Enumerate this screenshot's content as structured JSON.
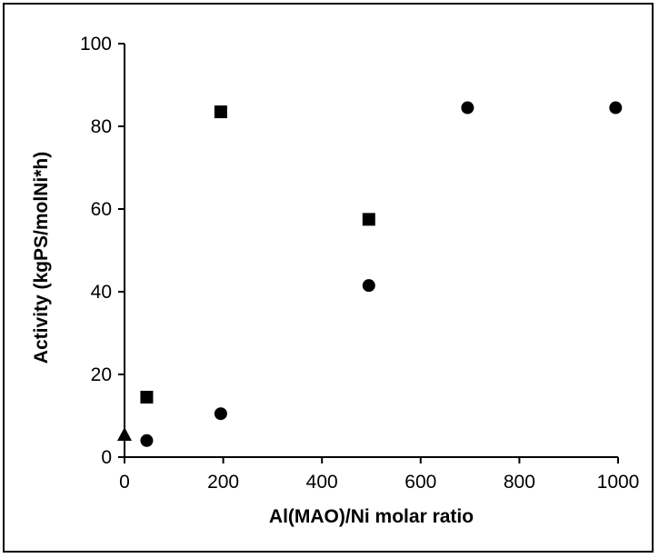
{
  "chart_data": {
    "type": "scatter",
    "title": "",
    "xlabel": "Al(MAO)/Ni molar ratio",
    "ylabel": "Activity (kgPS/molNi*h)",
    "xlim": [
      0,
      1000
    ],
    "ylim": [
      0,
      100
    ],
    "x_ticks": [
      "0",
      "200",
      "400",
      "600",
      "800",
      "1000"
    ],
    "y_ticks": [
      "0",
      "20",
      "40",
      "60",
      "80",
      "100"
    ],
    "grid": false,
    "legend": "none",
    "series": [
      {
        "marker": "square",
        "color": "#000000",
        "points": [
          {
            "x": 45,
            "y": 14.5
          },
          {
            "x": 195,
            "y": 83.5
          },
          {
            "x": 495,
            "y": 57.5
          }
        ]
      },
      {
        "marker": "circle",
        "color": "#000000",
        "points": [
          {
            "x": 45,
            "y": 4
          },
          {
            "x": 195,
            "y": 10.5
          },
          {
            "x": 495,
            "y": 41.5
          },
          {
            "x": 695,
            "y": 84.5
          },
          {
            "x": 995,
            "y": 84.5
          }
        ]
      },
      {
        "marker": "triangle",
        "color": "#000000",
        "points": [
          {
            "x": 0,
            "y": 5.5
          }
        ]
      }
    ]
  }
}
